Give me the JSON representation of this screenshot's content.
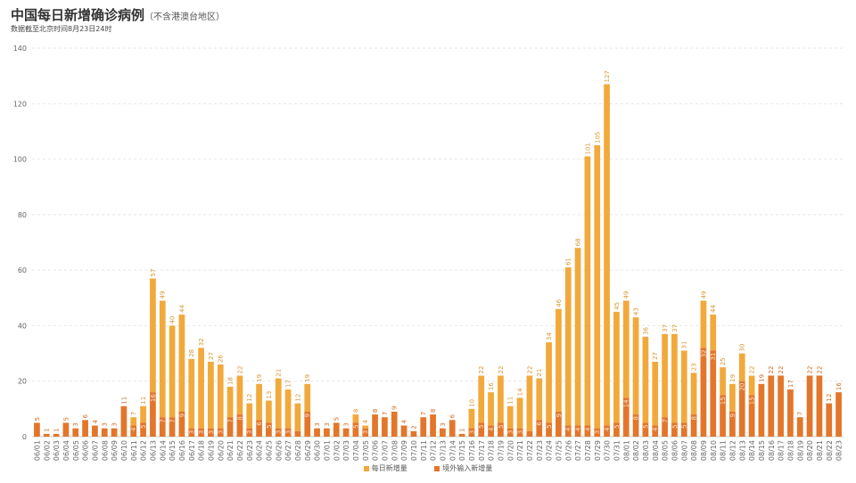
{
  "header": {
    "title": "中国每日新增确诊病例",
    "title_note": "（不含港澳台地区）",
    "subtitle": "数据截至北京时间8月23日24时"
  },
  "chart_data": {
    "type": "bar",
    "stacked": true,
    "ylim": [
      0,
      140
    ],
    "yticks": [
      0,
      20,
      40,
      60,
      80,
      100,
      120,
      140
    ],
    "grid": true,
    "legend_position": "bottom-center",
    "colors": {
      "total": "#f2a93b",
      "imported": "#e3762a"
    },
    "categories": [
      "06/01",
      "06/02",
      "06/03",
      "06/04",
      "06/05",
      "06/06",
      "06/07",
      "06/08",
      "06/09",
      "06/10",
      "06/11",
      "06/12",
      "06/13",
      "06/14",
      "06/15",
      "06/16",
      "06/17",
      "06/18",
      "06/19",
      "06/20",
      "06/21",
      "06/22",
      "06/23",
      "06/24",
      "06/25",
      "06/26",
      "06/27",
      "06/28",
      "06/29",
      "06/30",
      "07/01",
      "07/02",
      "07/03",
      "07/04",
      "07/05",
      "07/06",
      "07/07",
      "07/08",
      "07/09",
      "07/10",
      "07/11",
      "07/12",
      "07/13",
      "07/14",
      "07/15",
      "07/16",
      "07/17",
      "07/18",
      "07/19",
      "07/20",
      "07/21",
      "07/22",
      "07/23",
      "07/24",
      "07/25",
      "07/26",
      "07/27",
      "07/28",
      "07/29",
      "07/30",
      "07/31",
      "08/01",
      "08/02",
      "08/03",
      "08/04",
      "08/05",
      "08/06",
      "08/07",
      "08/08",
      "08/09",
      "08/10",
      "08/11",
      "08/12",
      "08/13",
      "08/14",
      "08/15",
      "08/16",
      "08/17",
      "08/18",
      "08/19",
      "08/20",
      "08/21",
      "08/22",
      "08/23"
    ],
    "series": [
      {
        "name": "每日新增量",
        "key": "total",
        "values": [
          5,
          1,
          1,
          5,
          3,
          6,
          4,
          3,
          3,
          11,
          7,
          11,
          57,
          49,
          40,
          44,
          28,
          32,
          27,
          26,
          18,
          22,
          12,
          19,
          13,
          21,
          17,
          12,
          19,
          3,
          3,
          5,
          3,
          8,
          4,
          8,
          7,
          9,
          4,
          2,
          7,
          8,
          3,
          6,
          1,
          10,
          22,
          16,
          22,
          11,
          14,
          22,
          21,
          34,
          46,
          61,
          68,
          101,
          105,
          127,
          45,
          49,
          43,
          36,
          27,
          37,
          37,
          31,
          23,
          49,
          44,
          25,
          19,
          30,
          22,
          19,
          22,
          22,
          17,
          7,
          22,
          22,
          12,
          16
        ]
      },
      {
        "name": "境外输入新增量",
        "key": "imported",
        "values": [
          5,
          1,
          1,
          5,
          3,
          6,
          4,
          3,
          3,
          11,
          4,
          5,
          16,
          7,
          7,
          9,
          3,
          3,
          3,
          3,
          7,
          8,
          3,
          6,
          5,
          3,
          3,
          2,
          9,
          3,
          3,
          5,
          3,
          5,
          3,
          8,
          7,
          9,
          4,
          2,
          7,
          8,
          3,
          6,
          1,
          3,
          5,
          4,
          5,
          3,
          3,
          2,
          6,
          5,
          9,
          4,
          4,
          4,
          3,
          4,
          5,
          14,
          8,
          5,
          4,
          7,
          5,
          5,
          8,
          32,
          31,
          15,
          9,
          20,
          15,
          19,
          22,
          22,
          17,
          7,
          22,
          22,
          12,
          16
        ]
      }
    ]
  }
}
